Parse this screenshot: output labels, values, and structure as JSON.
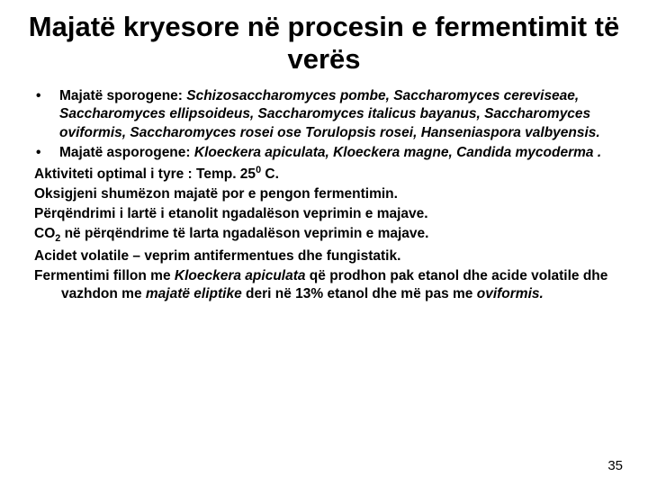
{
  "title": "Majatë kryesore në procesin e fermentimit të verës",
  "bullets": [
    {
      "label": "Majatë sporogene: ",
      "italicPart": "Schizosaccharomyces pombe, Saccharomyces cereviseae, Saccharomyces ellipsoideus, Saccharomyces italicus bayanus, Saccharomyces oviformis, Saccharomyces rosei ose Torulopsis rosei, Hanseniaspora valbyensis."
    },
    {
      "label": "Majatë asporogene: ",
      "italicPart": "Kloeckera apiculata, Kloeckera magne, Candida mycoderma ."
    }
  ],
  "lines": {
    "l1a": "Aktiviteti optimal i tyre : Temp. 25",
    "l1b": "0",
    "l1c": " C.",
    "l2": "Oksigjeni shumëzon majatë por e pengon fermentimin.",
    "l3": "Përqëndrimi i lartë i etanolit ngadalëson veprimin e majave.",
    "l4a": "CO",
    "l4b": "2",
    "l4c": " në përqëndrime të larta ngadalëson veprimin e majave.",
    "l5": "Acidet volatile – veprim antifermentues dhe fungistatik.",
    "l6a": "Fermentimi fillon me ",
    "l6b": "Kloeckera apiculata",
    "l6c": " që prodhon pak etanol dhe acide volatile dhe vazhdon me ",
    "l6d": "majatë eliptike",
    "l6e": " deri në 13% etanol dhe më pas me ",
    "l6f": "oviformis."
  },
  "pageNumber": "35",
  "colors": {
    "text": "#000000",
    "background": "#ffffff"
  }
}
